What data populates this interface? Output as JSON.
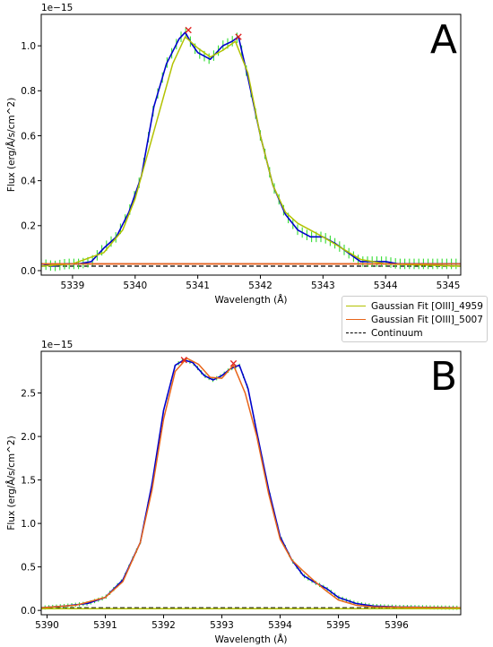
{
  "colors": {
    "data_line": "#0000cc",
    "error_bars": "#33dd33",
    "fit_4959": "#b3c200",
    "fit_5007": "#e8651a",
    "continuum": "#000000",
    "peak_marker": "#e02020",
    "noise_floor": "#c0392b"
  },
  "legend": {
    "entries": [
      {
        "label": "Gaussian Fit [OIII]_4959",
        "color": "#b3c200",
        "style": "solid"
      },
      {
        "label": "Gaussian Fit [OIII]_5007",
        "color": "#e8651a",
        "style": "solid"
      },
      {
        "label": "Continuum",
        "color": "#000000",
        "style": "dashed"
      }
    ]
  },
  "chart_data": [
    {
      "type": "line",
      "panel_label": "A",
      "offset_label": "1e−15",
      "xlabel": "Wavelength (Å)",
      "ylabel": "Flux (erg/Å/s/cm^2)",
      "xlim": [
        5338.5,
        5345.2
      ],
      "ylim": [
        -0.02,
        1.14
      ],
      "xticks": [
        5339,
        5340,
        5341,
        5342,
        5343,
        5344,
        5345
      ],
      "yticks": [
        0.0,
        0.2,
        0.4,
        0.6,
        0.8,
        1.0
      ],
      "continuum": 0.02,
      "series": [
        {
          "name": "data",
          "x": [
            5338.5,
            5338.7,
            5338.9,
            5339.1,
            5339.3,
            5339.5,
            5339.7,
            5339.9,
            5340.1,
            5340.3,
            5340.5,
            5340.7,
            5340.8,
            5340.9,
            5341.0,
            5341.2,
            5341.4,
            5341.55,
            5341.65,
            5341.8,
            5342.0,
            5342.2,
            5342.4,
            5342.6,
            5342.8,
            5343.0,
            5343.2,
            5343.4,
            5343.6,
            5343.8,
            5344.0,
            5344.2,
            5344.5,
            5345.2
          ],
          "y": [
            0.03,
            0.02,
            0.03,
            0.03,
            0.04,
            0.1,
            0.15,
            0.26,
            0.42,
            0.73,
            0.92,
            1.03,
            1.06,
            1.01,
            0.97,
            0.94,
            1.0,
            1.02,
            1.04,
            0.86,
            0.6,
            0.38,
            0.25,
            0.18,
            0.15,
            0.15,
            0.12,
            0.08,
            0.04,
            0.04,
            0.04,
            0.03,
            0.03,
            0.03
          ]
        },
        {
          "name": "Gaussian Fit [OIII]_4959",
          "x": [
            5338.5,
            5339.0,
            5339.5,
            5339.8,
            5340.0,
            5340.3,
            5340.6,
            5340.8,
            5341.0,
            5341.2,
            5341.4,
            5341.6,
            5341.8,
            5342.0,
            5342.2,
            5342.4,
            5342.6,
            5342.8,
            5343.0,
            5343.3,
            5343.6,
            5344.0,
            5345.2
          ],
          "y": [
            0.02,
            0.03,
            0.08,
            0.18,
            0.32,
            0.62,
            0.92,
            1.04,
            0.99,
            0.95,
            0.98,
            1.02,
            0.88,
            0.6,
            0.38,
            0.26,
            0.21,
            0.18,
            0.15,
            0.1,
            0.05,
            0.03,
            0.02
          ]
        },
        {
          "name": "Gaussian Fit [OIII]_5007",
          "x": [
            5338.5,
            5345.2
          ],
          "y": [
            0.03,
            0.03
          ]
        }
      ],
      "peaks": [
        {
          "x": 5340.85,
          "y": 1.07
        },
        {
          "x": 5341.65,
          "y": 1.04
        }
      ]
    },
    {
      "type": "line",
      "panel_label": "B",
      "offset_label": "1e−15",
      "xlabel": "Wavelength (Å)",
      "ylabel": "Flux (erg/Å/s/cm^2)",
      "xlim": [
        5389.9,
        5397.1
      ],
      "ylim": [
        -0.05,
        2.98
      ],
      "xticks": [
        5390,
        5391,
        5392,
        5393,
        5394,
        5395,
        5396
      ],
      "yticks": [
        0.0,
        0.5,
        1.0,
        1.5,
        2.0,
        2.5
      ],
      "continuum": 0.03,
      "series": [
        {
          "name": "data",
          "x": [
            5389.9,
            5390.3,
            5390.7,
            5391.0,
            5391.3,
            5391.6,
            5391.8,
            5392.0,
            5392.2,
            5392.35,
            5392.5,
            5392.7,
            5392.85,
            5393.0,
            5393.15,
            5393.3,
            5393.45,
            5393.6,
            5393.8,
            5394.0,
            5394.2,
            5394.4,
            5394.6,
            5394.8,
            5395.0,
            5395.3,
            5395.6,
            5396.0,
            5397.1
          ],
          "y": [
            0.03,
            0.05,
            0.08,
            0.15,
            0.35,
            0.78,
            1.45,
            2.3,
            2.82,
            2.88,
            2.85,
            2.7,
            2.65,
            2.7,
            2.78,
            2.82,
            2.55,
            2.05,
            1.4,
            0.85,
            0.58,
            0.4,
            0.32,
            0.25,
            0.15,
            0.08,
            0.05,
            0.04,
            0.03
          ]
        },
        {
          "name": "Gaussian Fit [OIII]_5007",
          "x": [
            5389.9,
            5390.5,
            5391.0,
            5391.3,
            5391.6,
            5391.8,
            5392.0,
            5392.2,
            5392.4,
            5392.6,
            5392.8,
            5393.0,
            5393.2,
            5393.4,
            5393.6,
            5393.8,
            5394.0,
            5394.2,
            5394.4,
            5394.6,
            5394.8,
            5395.0,
            5395.3,
            5395.6,
            5397.1
          ],
          "y": [
            0.03,
            0.06,
            0.15,
            0.33,
            0.78,
            1.38,
            2.2,
            2.75,
            2.9,
            2.83,
            2.68,
            2.67,
            2.82,
            2.5,
            2.0,
            1.35,
            0.82,
            0.58,
            0.45,
            0.33,
            0.22,
            0.12,
            0.06,
            0.04,
            0.03
          ]
        },
        {
          "name": "Gaussian Fit [OIII]_4959",
          "x": [
            5389.9,
            5397.1
          ],
          "y": [
            0.02,
            0.02
          ]
        }
      ],
      "peaks": [
        {
          "x": 5392.35,
          "y": 2.88
        },
        {
          "x": 5393.2,
          "y": 2.84
        }
      ]
    }
  ]
}
